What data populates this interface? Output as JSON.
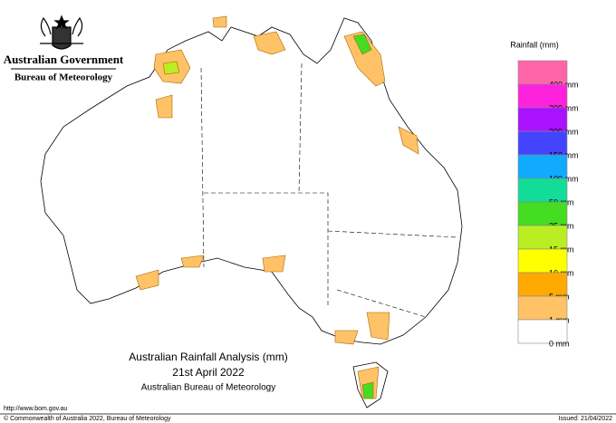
{
  "header": {
    "government": "Australian Government",
    "agency": "Bureau of Meteorology"
  },
  "legend": {
    "title": "Rainfall (mm)",
    "items": [
      {
        "label": "400 mm",
        "color": "#ff66aa"
      },
      {
        "label": "300 mm",
        "color": "#ff22dd"
      },
      {
        "label": "200 mm",
        "color": "#aa11ff"
      },
      {
        "label": "150 mm",
        "color": "#4444ff"
      },
      {
        "label": "100 mm",
        "color": "#11aaff"
      },
      {
        "label": "50 mm",
        "color": "#11dd99"
      },
      {
        "label": "25 mm",
        "color": "#44dd22"
      },
      {
        "label": "15 mm",
        "color": "#bbee22"
      },
      {
        "label": "10 mm",
        "color": "#ffff00"
      },
      {
        "label": "5 mm",
        "color": "#ffaa00"
      },
      {
        "label": "1 mm",
        "color": "#ffc266"
      },
      {
        "label": "0 mm",
        "color": "#ffffff"
      }
    ]
  },
  "map_title": {
    "line1": "Australian Rainfall Analysis (mm)",
    "line2": "21st April 2022",
    "line3": "Australian Bureau of Meteorology"
  },
  "footer": {
    "url": "http://www.bom.gov.au",
    "copyright": "© Commonwealth of Australia 2022, Bureau of Meteorology",
    "issued": "Issued: 21/04/2022"
  }
}
